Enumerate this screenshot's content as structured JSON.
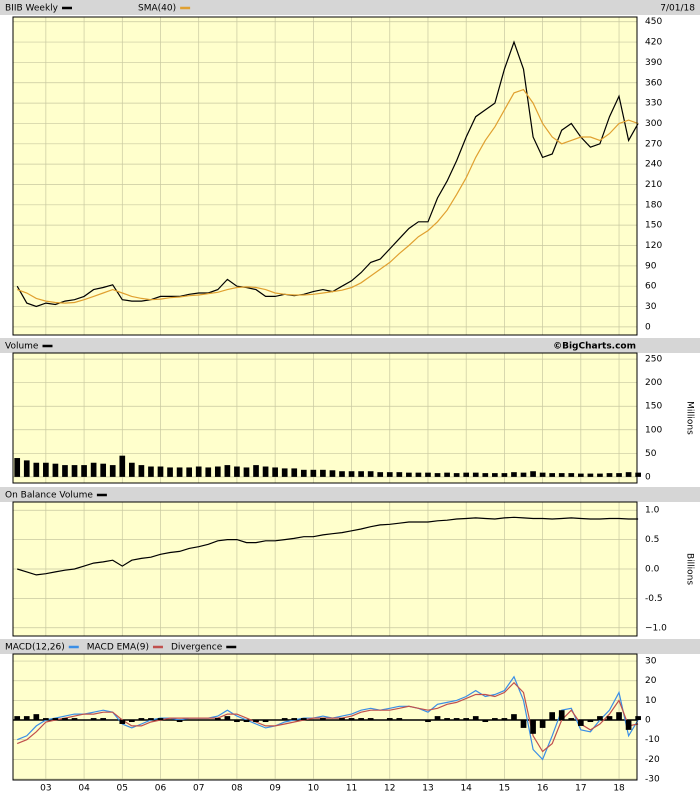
{
  "chart_data": [
    {
      "type": "line",
      "series": [
        {
          "name": "BIIB Weekly",
          "color": "#000000",
          "values": [
            60,
            35,
            30,
            35,
            33,
            38,
            40,
            45,
            55,
            58,
            62,
            40,
            38,
            38,
            40,
            45,
            45,
            45,
            48,
            50,
            50,
            55,
            70,
            60,
            58,
            55,
            45,
            45,
            48,
            46,
            48,
            52,
            55,
            52,
            60,
            68,
            80,
            95,
            100,
            115,
            130,
            145,
            155,
            155,
            190,
            215,
            245,
            280,
            310,
            320,
            330,
            380,
            420,
            380,
            280,
            250,
            255,
            290,
            300,
            280,
            265,
            270,
            310,
            340,
            275,
            300
          ]
        },
        {
          "name": "SMA(40)",
          "color": "#e0a030",
          "values": [
            55,
            50,
            42,
            38,
            36,
            35,
            36,
            40,
            45,
            50,
            55,
            50,
            45,
            42,
            40,
            41,
            43,
            44,
            46,
            47,
            49,
            51,
            55,
            58,
            59,
            58,
            55,
            50,
            48,
            47,
            47,
            48,
            50,
            52,
            54,
            58,
            65,
            75,
            85,
            95,
            108,
            120,
            133,
            142,
            155,
            172,
            195,
            220,
            250,
            275,
            295,
            320,
            345,
            350,
            330,
            300,
            280,
            270,
            275,
            280,
            280,
            275,
            285,
            300,
            305,
            300
          ]
        }
      ],
      "x": [
        2002.25,
        2002.5,
        2002.75,
        2003,
        2003.25,
        2003.5,
        2003.75,
        2004,
        2004.25,
        2004.5,
        2004.75,
        2005,
        2005.25,
        2005.5,
        2005.75,
        2006,
        2006.25,
        2006.5,
        2006.75,
        2007,
        2007.25,
        2007.5,
        2007.75,
        2008,
        2008.25,
        2008.5,
        2008.75,
        2009,
        2009.25,
        2009.5,
        2009.75,
        2010,
        2010.25,
        2010.5,
        2010.75,
        2011,
        2011.25,
        2011.5,
        2011.75,
        2012,
        2012.25,
        2012.5,
        2012.75,
        2013,
        2013.25,
        2013.5,
        2013.75,
        2014,
        2014.25,
        2014.5,
        2014.75,
        2015,
        2015.25,
        2015.5,
        2015.75,
        2016,
        2016.25,
        2016.5,
        2016.75,
        2017,
        2017.25,
        2017.5,
        2017.75,
        2018,
        2018.25,
        2018.5
      ],
      "date": "7/01/18",
      "xlim": [
        2002.14,
        2018.47
      ],
      "xticks": [
        {
          "value": 2003,
          "label": "03"
        },
        {
          "value": 2004,
          "label": "04"
        },
        {
          "value": 2005,
          "label": "05"
        },
        {
          "value": 2006,
          "label": "06"
        },
        {
          "value": 2007,
          "label": "07"
        },
        {
          "value": 2008,
          "label": "08"
        },
        {
          "value": 2009,
          "label": "09"
        },
        {
          "value": 2010,
          "label": "10"
        },
        {
          "value": 2011,
          "label": "11"
        },
        {
          "value": 2012,
          "label": "12"
        },
        {
          "value": 2013,
          "label": "13"
        },
        {
          "value": 2014,
          "label": "14"
        },
        {
          "value": 2015,
          "label": "15"
        },
        {
          "value": 2016,
          "label": "16"
        },
        {
          "value": 2017,
          "label": "17"
        },
        {
          "value": 2018,
          "label": "18"
        }
      ],
      "ylim": [
        -12,
        457
      ],
      "yticks": [
        0,
        30,
        60,
        90,
        120,
        150,
        180,
        210,
        240,
        270,
        300,
        330,
        360,
        390,
        420,
        450
      ],
      "grid": true
    },
    {
      "type": "bar",
      "series": [
        {
          "name": "Volume",
          "color": "#000000",
          "values": [
            40,
            35,
            30,
            30,
            28,
            25,
            25,
            25,
            30,
            28,
            25,
            45,
            30,
            25,
            22,
            22,
            20,
            20,
            20,
            22,
            20,
            22,
            25,
            22,
            20,
            25,
            22,
            20,
            18,
            18,
            15,
            15,
            15,
            14,
            12,
            12,
            12,
            12,
            10,
            10,
            10,
            9,
            9,
            9,
            8,
            9,
            8,
            9,
            9,
            8,
            8,
            8,
            10,
            9,
            12,
            9,
            8,
            8,
            8,
            7,
            7,
            7,
            8,
            8,
            10,
            9
          ]
        }
      ],
      "x": [
        2002.25,
        2002.5,
        2002.75,
        2003,
        2003.25,
        2003.5,
        2003.75,
        2004,
        2004.25,
        2004.5,
        2004.75,
        2005,
        2005.25,
        2005.5,
        2005.75,
        2006,
        2006.25,
        2006.5,
        2006.75,
        2007,
        2007.25,
        2007.5,
        2007.75,
        2008,
        2008.25,
        2008.5,
        2008.75,
        2009,
        2009.25,
        2009.5,
        2009.75,
        2010,
        2010.25,
        2010.5,
        2010.75,
        2011,
        2011.25,
        2011.5,
        2011.75,
        2012,
        2012.25,
        2012.5,
        2012.75,
        2013,
        2013.25,
        2013.5,
        2013.75,
        2014,
        2014.25,
        2014.5,
        2014.75,
        2015,
        2015.25,
        2015.5,
        2015.75,
        2016,
        2016.25,
        2016.5,
        2016.75,
        2017,
        2017.25,
        2017.5,
        2017.75,
        2018,
        2018.25,
        2018.5
      ],
      "source": "©BigCharts.com",
      "y_label": "Millions",
      "xlim": [
        2002.14,
        2018.47
      ],
      "xticks": [
        {
          "value": 2003,
          "label": "03"
        },
        {
          "value": 2004,
          "label": "04"
        },
        {
          "value": 2005,
          "label": "05"
        },
        {
          "value": 2006,
          "label": "06"
        },
        {
          "value": 2007,
          "label": "07"
        },
        {
          "value": 2008,
          "label": "08"
        },
        {
          "value": 2009,
          "label": "09"
        },
        {
          "value": 2010,
          "label": "10"
        },
        {
          "value": 2011,
          "label": "11"
        },
        {
          "value": 2012,
          "label": "12"
        },
        {
          "value": 2013,
          "label": "13"
        },
        {
          "value": 2014,
          "label": "14"
        },
        {
          "value": 2015,
          "label": "15"
        },
        {
          "value": 2016,
          "label": "16"
        },
        {
          "value": 2017,
          "label": "17"
        },
        {
          "value": 2018,
          "label": "18"
        }
      ],
      "ylim": [
        -13,
        263
      ],
      "yticks": [
        0,
        50,
        100,
        150,
        200,
        250
      ],
      "grid": true
    },
    {
      "type": "line",
      "series": [
        {
          "name": "On Balance Volume",
          "color": "#000000",
          "values": [
            0.0,
            -0.05,
            -0.1,
            -0.08,
            -0.05,
            -0.02,
            0.0,
            0.05,
            0.1,
            0.12,
            0.15,
            0.05,
            0.15,
            0.18,
            0.2,
            0.25,
            0.28,
            0.3,
            0.35,
            0.38,
            0.42,
            0.48,
            0.5,
            0.5,
            0.45,
            0.45,
            0.48,
            0.48,
            0.5,
            0.52,
            0.55,
            0.55,
            0.58,
            0.6,
            0.62,
            0.65,
            0.68,
            0.72,
            0.75,
            0.76,
            0.78,
            0.8,
            0.8,
            0.8,
            0.82,
            0.83,
            0.85,
            0.86,
            0.87,
            0.86,
            0.85,
            0.87,
            0.88,
            0.87,
            0.86,
            0.86,
            0.85,
            0.86,
            0.87,
            0.86,
            0.85,
            0.85,
            0.86,
            0.86,
            0.85,
            0.85
          ]
        }
      ],
      "x": [
        2002.25,
        2002.5,
        2002.75,
        2003,
        2003.25,
        2003.5,
        2003.75,
        2004,
        2004.25,
        2004.5,
        2004.75,
        2005,
        2005.25,
        2005.5,
        2005.75,
        2006,
        2006.25,
        2006.5,
        2006.75,
        2007,
        2007.25,
        2007.5,
        2007.75,
        2008,
        2008.25,
        2008.5,
        2008.75,
        2009,
        2009.25,
        2009.5,
        2009.75,
        2010,
        2010.25,
        2010.5,
        2010.75,
        2011,
        2011.25,
        2011.5,
        2011.75,
        2012,
        2012.25,
        2012.5,
        2012.75,
        2013,
        2013.25,
        2013.5,
        2013.75,
        2014,
        2014.25,
        2014.5,
        2014.75,
        2015,
        2015.25,
        2015.5,
        2015.75,
        2016,
        2016.25,
        2016.5,
        2016.75,
        2017,
        2017.25,
        2017.5,
        2017.75,
        2018,
        2018.25,
        2018.5
      ],
      "y_label": "Billions",
      "xlim": [
        2002.14,
        2018.47
      ],
      "xticks": [
        {
          "value": 2003,
          "label": "03"
        },
        {
          "value": 2004,
          "label": "04"
        },
        {
          "value": 2005,
          "label": "05"
        },
        {
          "value": 2006,
          "label": "06"
        },
        {
          "value": 2007,
          "label": "07"
        },
        {
          "value": 2008,
          "label": "08"
        },
        {
          "value": 2009,
          "label": "09"
        },
        {
          "value": 2010,
          "label": "10"
        },
        {
          "value": 2011,
          "label": "11"
        },
        {
          "value": 2012,
          "label": "12"
        },
        {
          "value": 2013,
          "label": "13"
        },
        {
          "value": 2014,
          "label": "14"
        },
        {
          "value": 2015,
          "label": "15"
        },
        {
          "value": 2016,
          "label": "16"
        },
        {
          "value": 2017,
          "label": "17"
        },
        {
          "value": 2018,
          "label": "18"
        }
      ],
      "ylim": [
        -1.14,
        1.14
      ],
      "yticks": [
        {
          "value": 1,
          "label": "1.0"
        },
        0.5,
        {
          "value": 0,
          "label": "0.0"
        },
        -0.5,
        {
          "value": -1,
          "label": "−1.0"
        }
      ],
      "grid": true
    },
    {
      "type": "line",
      "series": [
        {
          "name": "MACD(12,26)",
          "color": "#3a8ee6",
          "values": [
            -10,
            -8,
            -3,
            0,
            1,
            2,
            3,
            3,
            4,
            5,
            4,
            -2,
            -4,
            -2,
            0,
            1,
            1,
            0,
            1,
            1,
            1,
            2,
            5,
            2,
            0,
            -2,
            -4,
            -3,
            -1,
            0,
            1,
            1,
            2,
            1,
            2,
            3,
            5,
            6,
            5,
            6,
            7,
            7,
            6,
            4,
            8,
            9,
            10,
            12,
            15,
            12,
            13,
            15,
            22,
            10,
            -15,
            -20,
            -8,
            5,
            6,
            -5,
            -6,
            0,
            5,
            14,
            -8,
            0
          ]
        },
        {
          "name": "MACD EMA(9)",
          "color": "#c0504d",
          "values": [
            -12,
            -10,
            -6,
            -1,
            0,
            1,
            2,
            3,
            3,
            4,
            4,
            0,
            -3,
            -3,
            -1,
            0,
            1,
            1,
            1,
            1,
            1,
            1,
            3,
            3,
            1,
            -1,
            -3,
            -3,
            -2,
            -1,
            0,
            1,
            1,
            1,
            1,
            2,
            4,
            5,
            5,
            5,
            6,
            7,
            6,
            5,
            6,
            8,
            9,
            11,
            13,
            13,
            12,
            14,
            19,
            14,
            -8,
            -16,
            -12,
            0,
            5,
            -2,
            -5,
            -2,
            3,
            10,
            -3,
            -2
          ]
        },
        {
          "name": "Divergence",
          "color": "#000000",
          "style": "bar",
          "values": [
            2,
            2,
            3,
            1,
            1,
            1,
            1,
            0,
            1,
            1,
            0,
            -2,
            -1,
            1,
            1,
            1,
            0,
            -1,
            0,
            0,
            0,
            1,
            2,
            -1,
            -1,
            -1,
            -1,
            0,
            1,
            1,
            1,
            0,
            1,
            0,
            1,
            1,
            1,
            1,
            0,
            1,
            1,
            0,
            0,
            -1,
            2,
            1,
            1,
            1,
            2,
            -1,
            1,
            1,
            3,
            -4,
            -7,
            -4,
            4,
            5,
            1,
            -3,
            -1,
            2,
            2,
            4,
            -5,
            2
          ]
        }
      ],
      "x": [
        2002.25,
        2002.5,
        2002.75,
        2003,
        2003.25,
        2003.5,
        2003.75,
        2004,
        2004.25,
        2004.5,
        2004.75,
        2005,
        2005.25,
        2005.5,
        2005.75,
        2006,
        2006.25,
        2006.5,
        2006.75,
        2007,
        2007.25,
        2007.5,
        2007.75,
        2008,
        2008.25,
        2008.5,
        2008.75,
        2009,
        2009.25,
        2009.5,
        2009.75,
        2010,
        2010.25,
        2010.5,
        2010.75,
        2011,
        2011.25,
        2011.5,
        2011.75,
        2012,
        2012.25,
        2012.5,
        2012.75,
        2013,
        2013.25,
        2013.5,
        2013.75,
        2014,
        2014.25,
        2014.5,
        2014.75,
        2015,
        2015.25,
        2015.5,
        2015.75,
        2016,
        2016.25,
        2016.5,
        2016.75,
        2017,
        2017.25,
        2017.5,
        2017.75,
        2018,
        2018.25,
        2018.5
      ],
      "xlim": [
        2002.14,
        2018.47
      ],
      "xticks": [
        {
          "value": 2003,
          "label": "03"
        },
        {
          "value": 2004,
          "label": "04"
        },
        {
          "value": 2005,
          "label": "05"
        },
        {
          "value": 2006,
          "label": "06"
        },
        {
          "value": 2007,
          "label": "07"
        },
        {
          "value": 2008,
          "label": "08"
        },
        {
          "value": 2009,
          "label": "09"
        },
        {
          "value": 2010,
          "label": "10"
        },
        {
          "value": 2011,
          "label": "11"
        },
        {
          "value": 2012,
          "label": "12"
        },
        {
          "value": 2013,
          "label": "13"
        },
        {
          "value": 2014,
          "label": "14"
        },
        {
          "value": 2015,
          "label": "15"
        },
        {
          "value": 2016,
          "label": "16"
        },
        {
          "value": 2017,
          "label": "17"
        },
        {
          "value": 2018,
          "label": "18"
        }
      ],
      "ylim": [
        -30.5,
        33.6
      ],
      "yticks": [
        -30,
        -20,
        -10,
        0,
        10,
        20,
        30
      ],
      "zero_line": true,
      "grid": true
    }
  ]
}
